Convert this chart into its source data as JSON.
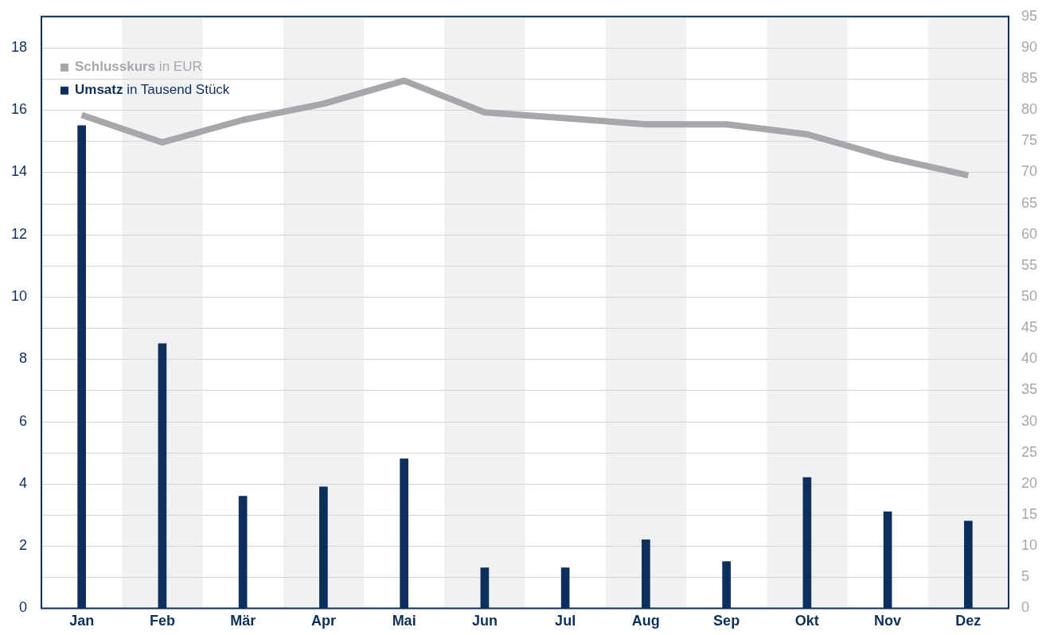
{
  "chart_data": {
    "type": "bar",
    "categories": [
      "Jan",
      "Feb",
      "Mär",
      "Apr",
      "Mai",
      "Jun",
      "Jul",
      "Aug",
      "Sep",
      "Okt",
      "Nov",
      "Dez"
    ],
    "series": [
      {
        "name": "Schlusskurs in EUR",
        "type": "line",
        "axis": "y2",
        "color": "#a6a7aa",
        "values": [
          79.2,
          74.8,
          78.4,
          81.0,
          84.7,
          79.6,
          78.7,
          77.7,
          77.7,
          76.1,
          72.4,
          69.5
        ]
      },
      {
        "name": "Umsatz in Tausend Stück",
        "color": "#0d2f5b",
        "values": [
          15.5,
          8.5,
          3.6,
          3.9,
          4.8,
          1.3,
          1.3,
          2.2,
          1.5,
          4.2,
          3.1,
          2.8
        ]
      }
    ],
    "ylim": [
      0,
      19
    ],
    "yticks": [
      0,
      2,
      4,
      6,
      8,
      10,
      12,
      14,
      16,
      18
    ],
    "y2lim": [
      0,
      95
    ],
    "y2ticks": [
      0,
      5,
      10,
      15,
      20,
      25,
      30,
      35,
      40,
      45,
      50,
      55,
      60,
      65,
      70,
      75,
      80,
      85,
      90,
      95
    ],
    "grid": "y",
    "legend": "top left",
    "marker": "none",
    "bands": [
      {
        "axis": "x",
        "from": "Feb",
        "to": "Feb",
        "color": "#f0f1f3"
      },
      {
        "axis": "x",
        "from": "Apr",
        "to": "Apr",
        "color": "#f0f1f3"
      },
      {
        "axis": "x",
        "from": "Jun",
        "to": "Jun",
        "color": "#f0f1f3"
      },
      {
        "axis": "x",
        "from": "Aug",
        "to": "Aug",
        "color": "#f0f1f3"
      },
      {
        "axis": "x",
        "from": "Okt",
        "to": "Okt",
        "color": "#f0f1f3"
      },
      {
        "axis": "x",
        "from": "Dez",
        "to": "Dez",
        "color": "#f0f1f3"
      }
    ]
  }
}
